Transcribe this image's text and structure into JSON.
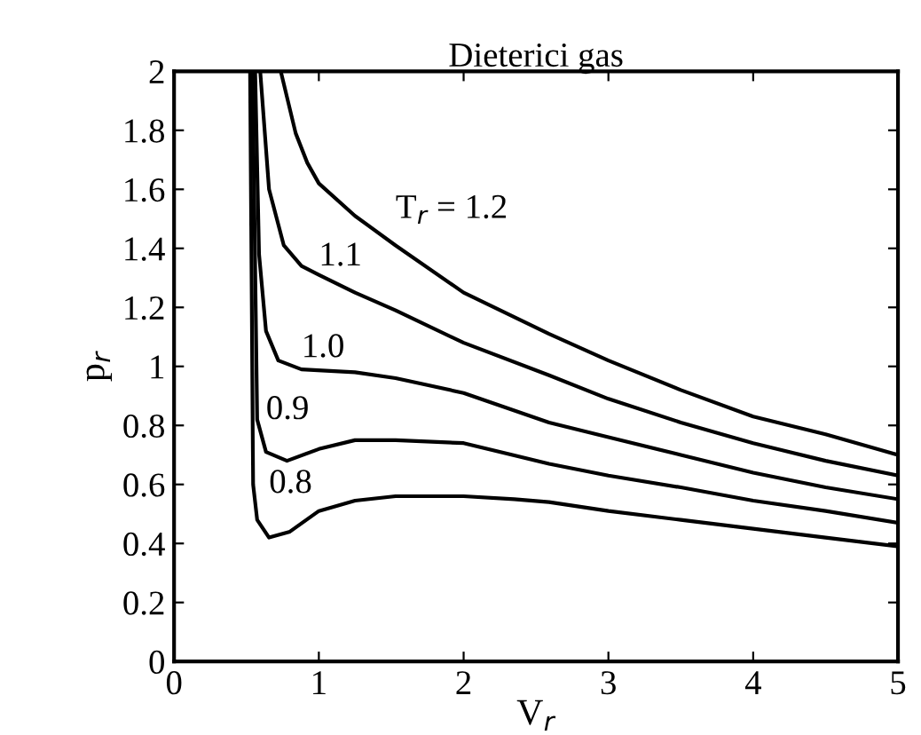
{
  "chart_data": {
    "type": "line",
    "title": "Dieterici gas",
    "xlabel": "V$_{r}$",
    "ylabel": "p$_{r}$",
    "xlim": [
      0,
      5
    ],
    "ylim": [
      0,
      2
    ],
    "xticks": [
      0,
      1,
      2,
      3,
      4,
      5
    ],
    "yticks": [
      0,
      0.2,
      0.4,
      0.6,
      0.8,
      1,
      1.2,
      1.4,
      1.6,
      1.8,
      2
    ],
    "grid": false,
    "legend": false,
    "marker": "none",
    "line_style": "solid",
    "series": [
      {
        "name": "T$_{r}$ = 1.2",
        "color": "#000000",
        "x": [
          0.737,
          0.84,
          0.92,
          1.0,
          1.25,
          1.53,
          2.0,
          2.59,
          3.0,
          3.5,
          4.0,
          4.5,
          5.0
        ],
        "values": [
          2.0,
          1.79,
          1.69,
          1.62,
          1.51,
          1.41,
          1.25,
          1.11,
          1.02,
          0.92,
          0.83,
          0.77,
          0.7
        ]
      },
      {
        "name": "1.1",
        "color": "#000000",
        "x": [
          0.595,
          0.656,
          0.758,
          0.88,
          1.0,
          1.25,
          1.53,
          2.0,
          2.59,
          3.0,
          3.5,
          4.0,
          4.5,
          5.0
        ],
        "values": [
          2.0,
          1.6,
          1.41,
          1.34,
          1.31,
          1.25,
          1.19,
          1.08,
          0.97,
          0.89,
          0.81,
          0.74,
          0.68,
          0.63
        ]
      },
      {
        "name": "1.0",
        "color": "#000000",
        "x": [
          0.56,
          0.587,
          0.635,
          0.72,
          0.88,
          1.25,
          1.53,
          2.0,
          2.59,
          3.0,
          3.5,
          4.0,
          4.5,
          5.0
        ],
        "values": [
          2.0,
          1.38,
          1.12,
          1.02,
          0.99,
          0.98,
          0.96,
          0.91,
          0.81,
          0.76,
          0.7,
          0.64,
          0.59,
          0.55
        ]
      },
      {
        "name": "0.9",
        "color": "#000000",
        "x": [
          0.542,
          0.574,
          0.635,
          0.78,
          1.0,
          1.25,
          1.53,
          2.0,
          2.59,
          3.0,
          3.5,
          4.0,
          4.5,
          5.0
        ],
        "values": [
          2.0,
          0.82,
          0.71,
          0.68,
          0.72,
          0.75,
          0.75,
          0.74,
          0.67,
          0.63,
          0.59,
          0.545,
          0.51,
          0.47
        ]
      },
      {
        "name": "0.8",
        "color": "#000000",
        "x": [
          0.525,
          0.546,
          0.574,
          0.656,
          0.8,
          1.0,
          1.25,
          1.53,
          1.78,
          2.0,
          2.35,
          2.59,
          3.0,
          3.5,
          4.0,
          4.5,
          5.0
        ],
        "values": [
          2.0,
          0.6,
          0.48,
          0.42,
          0.44,
          0.51,
          0.545,
          0.56,
          0.56,
          0.56,
          0.55,
          0.54,
          0.51,
          0.48,
          0.45,
          0.42,
          0.39
        ]
      }
    ]
  }
}
